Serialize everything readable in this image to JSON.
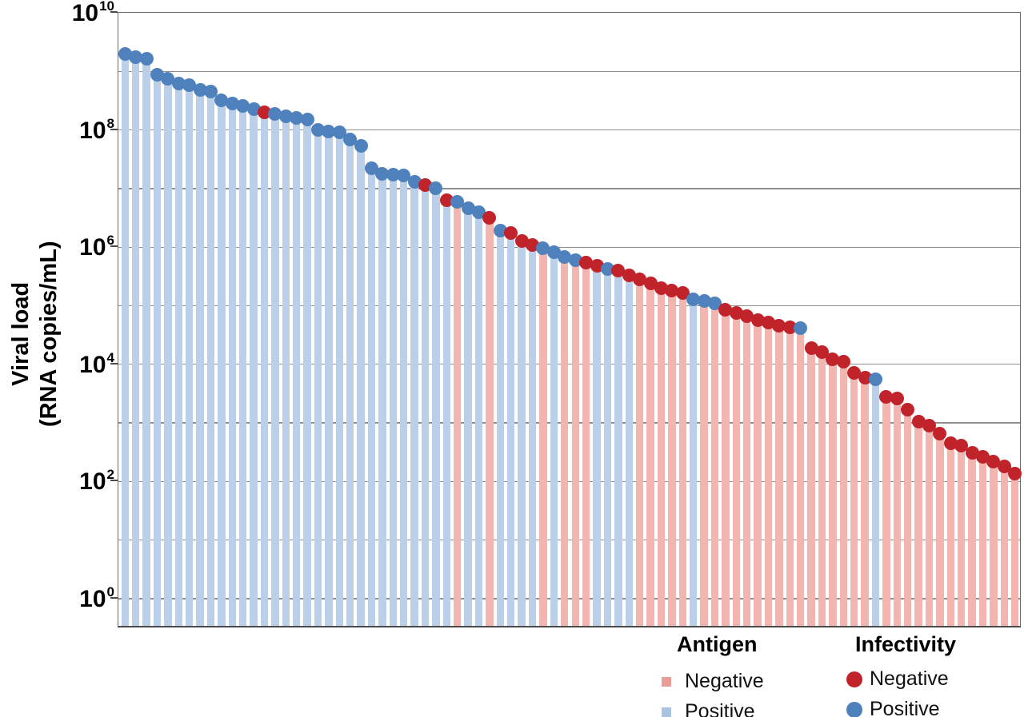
{
  "chart_data": {
    "type": "bar",
    "title": "",
    "ylabel_lines": [
      "Viral load",
      "(RNA copies/mL)"
    ],
    "xlabel": "",
    "y_axis": {
      "scale": "log10",
      "max_exponent": 10,
      "min_exponent": -0.5,
      "tick_exponents": [
        10,
        8,
        6,
        4,
        2,
        0
      ],
      "tick_base": "10",
      "gridlines_at_every_decade": true
    },
    "x_axis": {
      "categories": "individual specimens (unlabeled)",
      "count": 84
    },
    "colors": {
      "bar_antigen_positive": "#bccfe8",
      "bar_antigen_negative": "#f2b5b0",
      "dot_infectivity_positive": "#4f81bd",
      "dot_infectivity_negative": "#c1232b",
      "legend_square_negative": "#ea9c96",
      "legend_square_positive": "#a9c4e1",
      "gridline": "#8f8f8f",
      "axis": "#4a4a4a"
    },
    "legend": {
      "antigen_title": "Antigen",
      "antigen_negative": "Negative",
      "antigen_positive": "Positive",
      "infectivity_title": "Infectivity",
      "infectivity_negative": "Negative",
      "infectivity_positive": "Positive"
    },
    "specimens": {
      "values": [
        2000000000.0,
        1740000000.0,
        1660000000.0,
        890000000.0,
        740000000.0,
        630000000.0,
        580000000.0,
        480000000.0,
        460000000.0,
        320000000.0,
        280000000.0,
        260000000.0,
        230000000.0,
        200000000.0,
        190000000.0,
        170000000.0,
        160000000.0,
        150000000.0,
        100000000.0,
        93000000.0,
        91000000.0,
        68000000.0,
        54000000.0,
        22000000.0,
        18000000.0,
        17400000.0,
        16600000.0,
        13000000.0,
        11500000.0,
        10200000.0,
        6300000.0,
        5900000.0,
        4600000.0,
        4000000.0,
        3200000.0,
        1900000.0,
        1740000.0,
        1290000.0,
        1100000.0,
        950000.0,
        810000.0,
        690000.0,
        600000.0,
        550000.0,
        480000.0,
        430000.0,
        400000.0,
        330000.0,
        280000.0,
        240000.0,
        200000.0,
        180000.0,
        166000.0,
        130000.0,
        120000.0,
        110000.0,
        85000.0,
        76000.0,
        66000.0,
        56000.0,
        52000.0,
        46000.0,
        43000.0,
        41000.0,
        19000.0,
        16000.0,
        12000.0,
        11000.0,
        7200.0,
        6000.0,
        5600.0,
        2800.0,
        2600.0,
        1700.0,
        1050.0,
        900.0,
        660.0,
        450.0,
        410.0,
        310.0,
        260.0,
        220.0,
        180.0,
        135.0
      ],
      "antigen": [
        "P",
        "P",
        "P",
        "P",
        "P",
        "P",
        "P",
        "P",
        "P",
        "P",
        "P",
        "P",
        "P",
        "P",
        "P",
        "P",
        "P",
        "P",
        "P",
        "P",
        "P",
        "P",
        "P",
        "P",
        "P",
        "P",
        "P",
        "P",
        "P",
        "P",
        "P",
        "N",
        "P",
        "P",
        "N",
        "P",
        "P",
        "P",
        "P",
        "N",
        "P",
        "N",
        "N",
        "N",
        "P",
        "P",
        "P",
        "P",
        "N",
        "N",
        "N",
        "N",
        "N",
        "P",
        "N",
        "N",
        "N",
        "N",
        "N",
        "N",
        "N",
        "N",
        "N",
        "N",
        "N",
        "N",
        "N",
        "N",
        "N",
        "N",
        "P",
        "N",
        "N",
        "N",
        "N",
        "N",
        "N",
        "N",
        "N",
        "N",
        "N",
        "N",
        "N",
        "N"
      ],
      "infectivity": [
        "P",
        "P",
        "P",
        "P",
        "P",
        "P",
        "P",
        "P",
        "P",
        "P",
        "P",
        "P",
        "P",
        "N",
        "P",
        "P",
        "P",
        "P",
        "P",
        "P",
        "P",
        "P",
        "P",
        "P",
        "P",
        "P",
        "P",
        "P",
        "N",
        "P",
        "N",
        "P",
        "P",
        "P",
        "N",
        "P",
        "N",
        "N",
        "N",
        "P",
        "P",
        "P",
        "P",
        "N",
        "N",
        "P",
        "N",
        "N",
        "N",
        "N",
        "N",
        "N",
        "N",
        "P",
        "P",
        "P",
        "N",
        "N",
        "N",
        "N",
        "N",
        "N",
        "N",
        "P",
        "N",
        "N",
        "N",
        "N",
        "N",
        "N",
        "P",
        "N",
        "N",
        "N",
        "N",
        "N",
        "N",
        "N",
        "N",
        "N",
        "N",
        "N",
        "N",
        "N"
      ]
    }
  }
}
